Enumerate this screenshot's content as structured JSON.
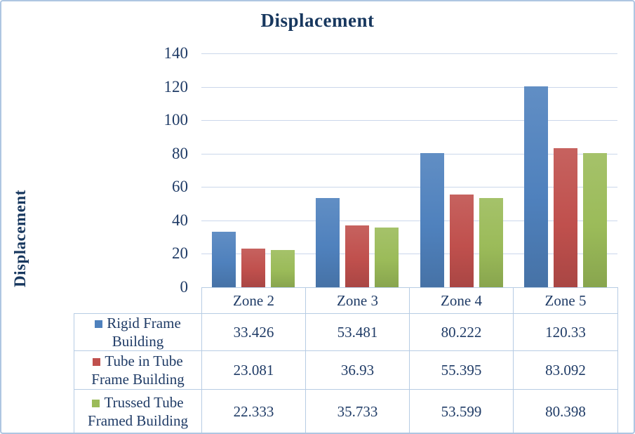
{
  "chart_data": {
    "type": "bar",
    "title": "Displacement",
    "ylabel": "Displacement",
    "xlabel": "",
    "categories": [
      "Zone 2",
      "Zone 3",
      "Zone 4",
      "Zone 5"
    ],
    "series": [
      {
        "name": "Rigid Frame Building",
        "color": "#4F81BD",
        "values": [
          33.426,
          53.481,
          80.222,
          120.33
        ],
        "values_display": [
          "33.426",
          "53.481",
          "80.222",
          "120.33"
        ]
      },
      {
        "name": "Tube in Tube Frame Building",
        "color": "#C0504D",
        "values": [
          23.081,
          36.93,
          55.395,
          83.092
        ],
        "values_display": [
          "23.081",
          "36.93",
          "55.395",
          "83.092"
        ]
      },
      {
        "name": "Trussed Tube Framed Building",
        "color": "#9BBB59",
        "values": [
          22.333,
          35.733,
          53.599,
          80.398
        ],
        "values_display": [
          "22.333",
          "35.733",
          "53.599",
          "80.398"
        ]
      }
    ],
    "ylim": [
      0,
      140
    ],
    "yticks": [
      0,
      20,
      40,
      60,
      80,
      100,
      120,
      140
    ],
    "grid": true,
    "legend_position": "table-left-column",
    "colors": {
      "text": "#1F3B66",
      "title": "#17375E",
      "gridline": "#CBD7EB",
      "table_border": "#B7CCE4",
      "figure_border": "#AEC6E2"
    }
  }
}
